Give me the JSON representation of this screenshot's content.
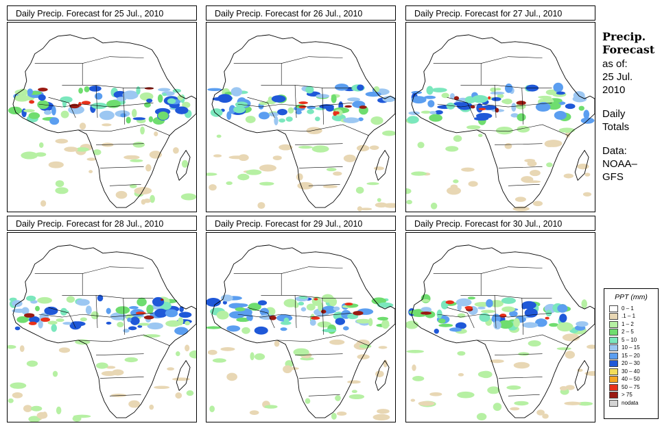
{
  "panels": [
    {
      "title": "Daily Precip. Forecast for  25 Jul., 2010",
      "day": 25
    },
    {
      "title": "Daily Precip. Forecast for  26 Jul., 2010",
      "day": 26
    },
    {
      "title": "Daily Precip. Forecast for  27 Jul., 2010",
      "day": 27
    },
    {
      "title": "Daily Precip. Forecast for  28 Jul., 2010",
      "day": 28
    },
    {
      "title": "Daily Precip. Forecast for  29 Jul., 2010",
      "day": 29
    },
    {
      "title": "Daily Precip. Forecast for  30 Jul., 2010",
      "day": 30
    }
  ],
  "sidebar": {
    "heading_line1": "Precip.",
    "heading_line2": "Forecast",
    "asof_label": "as of:",
    "asof_date_line1": "25 Jul.",
    "asof_date_line2": "2010",
    "totals_line1": "Daily",
    "totals_line2": "Totals",
    "data_line1": "Data:",
    "data_line2": "NOAA–",
    "data_line3": "GFS"
  },
  "legend": {
    "title": "PPT (mm)",
    "items": [
      {
        "label": "0 – 1",
        "color": "#ffffff"
      },
      {
        "label": ".1 – 1",
        "color": "#e8d7b4"
      },
      {
        "label": "1 – 2",
        "color": "#b6f0a3"
      },
      {
        "label": "2 – 5",
        "color": "#6fdd6f"
      },
      {
        "label": "5 – 10",
        "color": "#7be7bd"
      },
      {
        "label": "10 – 15",
        "color": "#9cc7f2"
      },
      {
        "label": "15 – 20",
        "color": "#5b9ef0"
      },
      {
        "label": "20 – 30",
        "color": "#1f58d8"
      },
      {
        "label": "30 – 40",
        "color": "#f2dc5a"
      },
      {
        "label": "40 – 50",
        "color": "#f5a623"
      },
      {
        "label": "50 – 75",
        "color": "#e8311a"
      },
      {
        "label": "> 75",
        "color": "#9a1a12"
      },
      {
        "label": "nodata",
        "color": "#d3d3d3"
      }
    ]
  }
}
